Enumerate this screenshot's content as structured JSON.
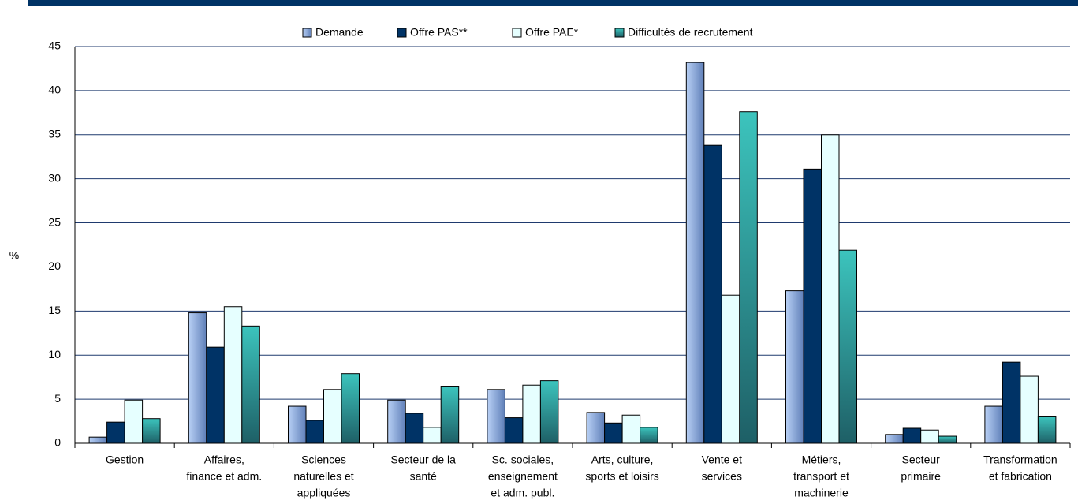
{
  "chart_data": {
    "type": "bar",
    "y_label": "%",
    "categories": [
      [
        "Gestion"
      ],
      [
        "Affaires,",
        "finance et adm."
      ],
      [
        "Sciences",
        "naturelles et",
        "appliquées"
      ],
      [
        "Secteur de la",
        "santé"
      ],
      [
        "Sc. sociales,",
        "enseignement",
        "et adm. publ."
      ],
      [
        "Arts, culture,",
        "sports et loisirs"
      ],
      [
        "Vente et",
        "services"
      ],
      [
        "Métiers,",
        "transport et",
        "machinerie"
      ],
      [
        "Secteur",
        "primaire"
      ],
      [
        "Transformation",
        "et fabrication"
      ]
    ],
    "series": [
      {
        "name": "Demande",
        "color": "#8fb0e6",
        "values": [
          0.7,
          14.8,
          4.2,
          4.9,
          6.1,
          3.5,
          43.2,
          17.3,
          1.0,
          4.2
        ]
      },
      {
        "name": "Offre PAS**",
        "color": "#003366",
        "values": [
          2.4,
          10.9,
          2.6,
          3.4,
          2.9,
          2.3,
          33.8,
          31.1,
          1.7,
          9.2
        ]
      },
      {
        "name": "Offre PAE*",
        "color": "#e6ffff",
        "values": [
          4.9,
          15.5,
          6.1,
          1.8,
          6.6,
          3.2,
          16.8,
          35.0,
          1.5,
          7.6
        ]
      },
      {
        "name": "Difficultés de recrutement",
        "color": "#33b5b0",
        "values": [
          2.8,
          13.3,
          7.9,
          6.4,
          7.1,
          1.8,
          37.6,
          21.9,
          0.8,
          3.0
        ]
      }
    ],
    "ylim": [
      0,
      45
    ],
    "yticks": [
      0,
      5,
      10,
      15,
      20,
      25,
      30,
      35,
      40,
      45
    ],
    "grid": true
  }
}
